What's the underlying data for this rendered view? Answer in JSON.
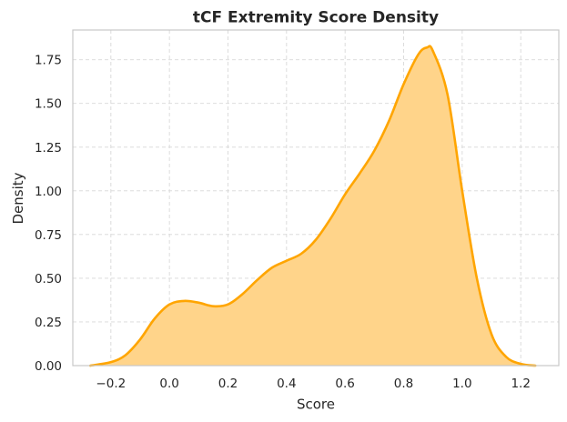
{
  "chart_data": {
    "type": "area",
    "title": "tCF Extremity Score Density",
    "xlabel": "Score",
    "ylabel": "Density",
    "xlim": [
      -0.33,
      1.33
    ],
    "ylim": [
      0,
      1.92
    ],
    "xticks": [
      -0.2,
      0.0,
      0.2,
      0.4,
      0.6,
      0.8,
      1.0,
      1.2
    ],
    "xtick_labels": [
      "−0.2",
      "0.0",
      "0.2",
      "0.4",
      "0.6",
      "0.8",
      "1.0",
      "1.2"
    ],
    "yticks": [
      0.0,
      0.25,
      0.5,
      0.75,
      1.0,
      1.25,
      1.5,
      1.75
    ],
    "ytick_labels": [
      "0.00",
      "0.25",
      "0.50",
      "0.75",
      "1.00",
      "1.25",
      "1.50",
      "1.75"
    ],
    "grid": true,
    "legend": "none",
    "series": [
      {
        "line_color": "#FFA500",
        "fill_color": "#FFD48A",
        "x": [
          -0.27,
          -0.2,
          -0.15,
          -0.1,
          -0.05,
          0.0,
          0.05,
          0.1,
          0.15,
          0.2,
          0.25,
          0.3,
          0.35,
          0.4,
          0.45,
          0.5,
          0.55,
          0.6,
          0.65,
          0.7,
          0.75,
          0.8,
          0.85,
          0.88,
          0.9,
          0.95,
          1.0,
          1.05,
          1.1,
          1.15,
          1.2,
          1.25
        ],
        "y": [
          0.0,
          0.02,
          0.06,
          0.15,
          0.27,
          0.35,
          0.37,
          0.36,
          0.34,
          0.35,
          0.41,
          0.49,
          0.56,
          0.6,
          0.64,
          0.72,
          0.84,
          0.98,
          1.1,
          1.23,
          1.4,
          1.61,
          1.78,
          1.82,
          1.8,
          1.55,
          1.0,
          0.5,
          0.18,
          0.05,
          0.01,
          0.0
        ]
      }
    ]
  }
}
